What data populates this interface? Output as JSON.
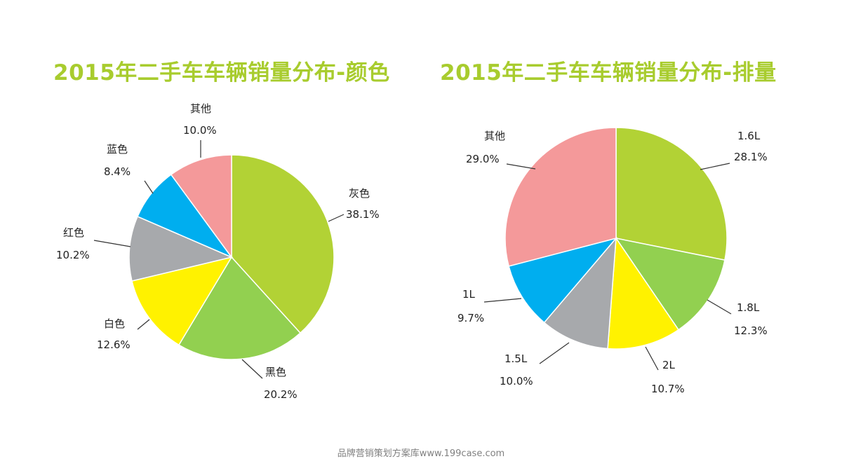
{
  "chart_data": [
    {
      "type": "pie",
      "title": "2015年二手车车辆销量分布-颜色",
      "slices": [
        {
          "label": "灰色",
          "value": 38.1,
          "value_label": "38.1%",
          "color": "#b2d235"
        },
        {
          "label": "黑色",
          "value": 20.2,
          "value_label": "20.2%",
          "color": "#92d050"
        },
        {
          "label": "白色",
          "value": 12.6,
          "value_label": "12.6%",
          "color": "#fff200"
        },
        {
          "label": "红色",
          "value": 10.2,
          "value_label": "10.2%",
          "color": "#a7a9ac"
        },
        {
          "label": "蓝色",
          "value": 8.4,
          "value_label": "8.4%",
          "color": "#00aeef"
        },
        {
          "label": "其他",
          "value": 10.0,
          "value_label": "10.0%",
          "color": "#f4999a"
        }
      ]
    },
    {
      "type": "pie",
      "title": "2015年二手车车辆销量分布-排量",
      "slices": [
        {
          "label": "1.6L",
          "value": 28.1,
          "value_label": "28.1%",
          "color": "#b2d235"
        },
        {
          "label": "1.8L",
          "value": 12.3,
          "value_label": "12.3%",
          "color": "#92d050"
        },
        {
          "label": "2L",
          "value": 10.7,
          "value_label": "10.7%",
          "color": "#fff200"
        },
        {
          "label": "1.5L",
          "value": 10.0,
          "value_label": "10.0%",
          "color": "#a7a9ac"
        },
        {
          "label": "1L",
          "value": 9.7,
          "value_label": "9.7%",
          "color": "#00aeef"
        },
        {
          "label": "其他",
          "value": 29.0,
          "value_label": "29.0%",
          "color": "#f4999a"
        }
      ]
    }
  ],
  "footer": "品牌营销策划方案库www.199case.com"
}
